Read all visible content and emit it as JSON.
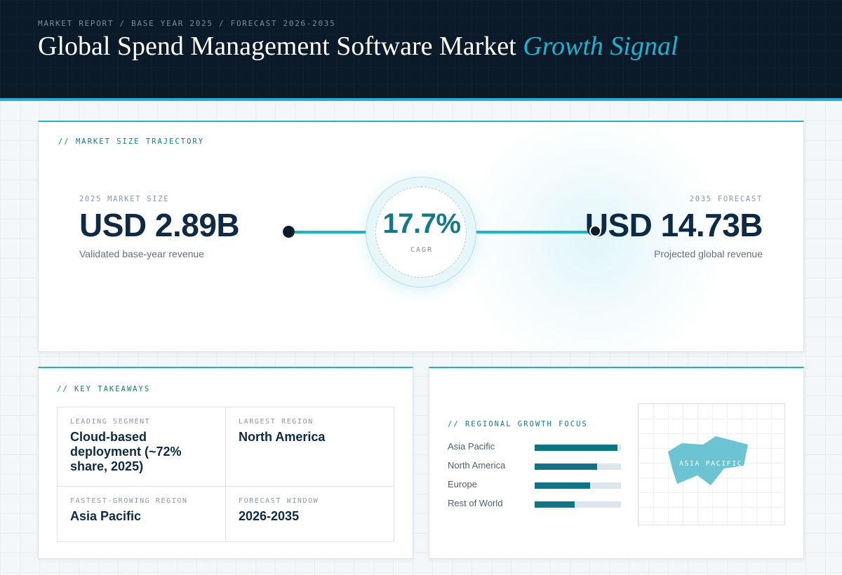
{
  "header": {
    "eyebrow": "MARKET REPORT / BASE YEAR 2025 / FORECAST 2026-2035",
    "title_main": "Global Spend Management Software Market",
    "title_accent": "Growth Signal"
  },
  "trajectory": {
    "section_label": "// MARKET SIZE TRAJECTORY",
    "left": {
      "label": "2025 MARKET SIZE",
      "value": "USD 2.89B",
      "sub": "Validated base-year revenue"
    },
    "cagr": {
      "value": "17.7%",
      "label": "CAGR"
    },
    "right": {
      "label": "2035 FORECAST",
      "value": "USD 14.73B",
      "sub": "Projected global revenue"
    }
  },
  "takeaways": {
    "section_label": "// KEY TAKEAWAYS",
    "items": [
      {
        "label": "LEADING SEGMENT",
        "value": "Cloud-based deployment (~72% share, 2025)"
      },
      {
        "label": "LARGEST REGION",
        "value": "North America"
      },
      {
        "label": "FASTEST-GROWING REGION",
        "value": "Asia Pacific"
      },
      {
        "label": "FORECAST WINDOW",
        "value": "2026-2035"
      }
    ]
  },
  "regional": {
    "section_label": "// REGIONAL GROWTH FOCUS",
    "bars": [
      {
        "name": "Asia Pacific",
        "level": 0.96
      },
      {
        "name": "North America",
        "level": 0.72
      },
      {
        "name": "Europe",
        "level": 0.64
      },
      {
        "name": "Rest of World",
        "level": 0.46
      }
    ],
    "map_label": "ASIA PACIFIC",
    "map_color": "#6cc3d2"
  },
  "colors": {
    "header_bg": "#0b1a28",
    "accent": "#1ab4d0",
    "dark_text": "#0e2a44",
    "teal": "#127a8c",
    "bar_fill": "#0f7486"
  }
}
